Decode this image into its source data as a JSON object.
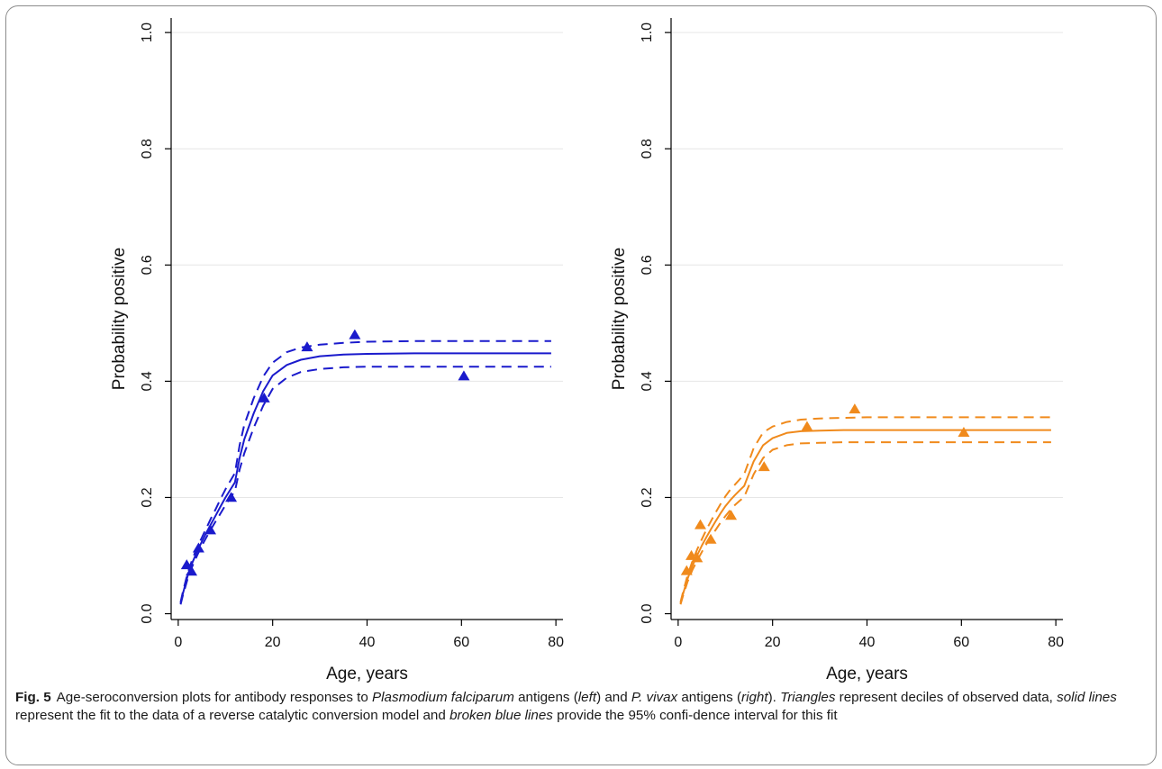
{
  "figure": {
    "label": "Fig. 5",
    "caption": [
      {
        "text": "Age-seroconversion plots for antibody responses to ",
        "italic": false
      },
      {
        "text": "Plasmodium falciparum",
        "italic": true
      },
      {
        "text": " antigens (",
        "italic": false
      },
      {
        "text": "left",
        "italic": true
      },
      {
        "text": ") and ",
        "italic": false
      },
      {
        "text": "P. vivax",
        "italic": true
      },
      {
        "text": " antigens (",
        "italic": false
      },
      {
        "text": "right",
        "italic": true
      },
      {
        "text": "). ",
        "italic": false
      },
      {
        "text": "Triangles",
        "italic": true
      },
      {
        "text": " represent deciles of observed data, ",
        "italic": false
      },
      {
        "text": "solid lines",
        "italic": true
      },
      {
        "text": " represent the fit to the data of a reverse catalytic conversion model and ",
        "italic": false
      },
      {
        "text": "broken blue lines",
        "italic": true
      },
      {
        "text": " provide the 95% confi-dence interval for this fit",
        "italic": false
      }
    ]
  },
  "chart_data": [
    {
      "type": "line",
      "panel": "left",
      "color": "#1a1acc",
      "xlabel": "Age, years",
      "ylabel": "Probability positive",
      "xlim": [
        -1.5,
        81.5
      ],
      "ylim": [
        -0.01,
        1.025
      ],
      "xticks": [
        0,
        20,
        40,
        60,
        80
      ],
      "xtick_labels": [
        "0",
        "20",
        "40",
        "60",
        "80"
      ],
      "yticks": [
        0.0,
        0.2,
        0.4,
        0.6,
        0.8,
        1.0
      ],
      "ytick_labels": [
        "0.0",
        "0.2",
        "0.4",
        "0.6",
        "0.8",
        "1.0"
      ],
      "grid": true,
      "series": [
        {
          "role": "observed",
          "marker": "triangle",
          "x": [
            1.8,
            2.8,
            4.3,
            6.8,
            11.2,
            18.2,
            27.3,
            37.4,
            60.5
          ],
          "y": [
            0.083,
            0.072,
            0.112,
            0.143,
            0.199,
            0.37,
            0.458,
            0.479,
            0.408
          ]
        },
        {
          "role": "fit",
          "line": "solid",
          "x": [
            0.5,
            1,
            2,
            3,
            4,
            5,
            6,
            7,
            8,
            9,
            10,
            11,
            12,
            13,
            14,
            16,
            18,
            20,
            23,
            26,
            30,
            35,
            40,
            50,
            60,
            70,
            79
          ],
          "y": [
            0.018,
            0.035,
            0.065,
            0.088,
            0.107,
            0.124,
            0.14,
            0.155,
            0.17,
            0.185,
            0.2,
            0.213,
            0.226,
            0.268,
            0.3,
            0.345,
            0.383,
            0.41,
            0.428,
            0.437,
            0.443,
            0.446,
            0.447,
            0.448,
            0.448,
            0.448,
            0.448
          ]
        },
        {
          "role": "ci_upper",
          "line": "dashed",
          "x": [
            0.5,
            1,
            2,
            3,
            4,
            5,
            6,
            7,
            8,
            9,
            10,
            11,
            12,
            13,
            14,
            16,
            18,
            20,
            23,
            26,
            30,
            35,
            40,
            50,
            60,
            70,
            79
          ],
          "y": [
            0.02,
            0.038,
            0.07,
            0.094,
            0.114,
            0.131,
            0.148,
            0.165,
            0.181,
            0.198,
            0.214,
            0.228,
            0.242,
            0.29,
            0.325,
            0.371,
            0.408,
            0.432,
            0.45,
            0.458,
            0.463,
            0.466,
            0.468,
            0.469,
            0.469,
            0.469,
            0.469
          ]
        },
        {
          "role": "ci_lower",
          "line": "dashed",
          "x": [
            0.5,
            1,
            2,
            3,
            4,
            5,
            6,
            7,
            8,
            9,
            10,
            11,
            12,
            13,
            14,
            16,
            18,
            20,
            23,
            26,
            30,
            35,
            40,
            50,
            60,
            70,
            79
          ],
          "y": [
            0.016,
            0.032,
            0.06,
            0.082,
            0.1,
            0.117,
            0.132,
            0.146,
            0.16,
            0.173,
            0.187,
            0.199,
            0.211,
            0.248,
            0.276,
            0.32,
            0.358,
            0.387,
            0.406,
            0.416,
            0.421,
            0.424,
            0.425,
            0.425,
            0.425,
            0.425,
            0.425
          ]
        }
      ]
    },
    {
      "type": "line",
      "panel": "right",
      "color": "#f08a1c",
      "xlabel": "Age, years",
      "ylabel": "Probability positive",
      "xlim": [
        -1.5,
        81.5
      ],
      "ylim": [
        -0.01,
        1.025
      ],
      "xticks": [
        0,
        20,
        40,
        60,
        80
      ],
      "xtick_labels": [
        "0",
        "20",
        "40",
        "60",
        "80"
      ],
      "yticks": [
        0.0,
        0.2,
        0.4,
        0.6,
        0.8,
        1.0
      ],
      "ytick_labels": [
        "0.0",
        "0.2",
        "0.4",
        "0.6",
        "0.8",
        "1.0"
      ],
      "grid": true,
      "series": [
        {
          "role": "observed",
          "marker": "triangle",
          "x": [
            1.8,
            2.8,
            4.0,
            4.7,
            6.9,
            11.2,
            18.2,
            27.3,
            37.4,
            60.5
          ],
          "y": [
            0.073,
            0.099,
            0.095,
            0.152,
            0.127,
            0.168,
            0.252,
            0.321,
            0.351,
            0.311
          ]
        },
        {
          "role": "fit",
          "line": "solid",
          "x": [
            0.5,
            1,
            2,
            3,
            4,
            5,
            6,
            7,
            8,
            9,
            10,
            11,
            12,
            13,
            14,
            16,
            18,
            20,
            23,
            26,
            30,
            35,
            40,
            50,
            60,
            70,
            79
          ],
          "y": [
            0.018,
            0.033,
            0.06,
            0.082,
            0.1,
            0.117,
            0.132,
            0.146,
            0.16,
            0.173,
            0.185,
            0.195,
            0.204,
            0.212,
            0.22,
            0.262,
            0.29,
            0.302,
            0.311,
            0.314,
            0.315,
            0.316,
            0.316,
            0.316,
            0.316,
            0.316,
            0.316
          ]
        },
        {
          "role": "ci_upper",
          "line": "dashed",
          "x": [
            0.5,
            1,
            2,
            3,
            4,
            5,
            6,
            7,
            8,
            9,
            10,
            11,
            12,
            13,
            14,
            16,
            18,
            20,
            23,
            26,
            30,
            35,
            40,
            50,
            60,
            70,
            79
          ],
          "y": [
            0.02,
            0.036,
            0.066,
            0.09,
            0.11,
            0.128,
            0.145,
            0.16,
            0.175,
            0.189,
            0.202,
            0.213,
            0.222,
            0.231,
            0.24,
            0.285,
            0.312,
            0.322,
            0.33,
            0.334,
            0.336,
            0.337,
            0.338,
            0.338,
            0.338,
            0.338,
            0.338
          ]
        },
        {
          "role": "ci_lower",
          "line": "dashed",
          "x": [
            0.5,
            1,
            2,
            3,
            4,
            5,
            6,
            7,
            8,
            9,
            10,
            11,
            12,
            13,
            14,
            16,
            18,
            20,
            23,
            26,
            30,
            35,
            40,
            50,
            60,
            70,
            79
          ],
          "y": [
            0.016,
            0.03,
            0.055,
            0.075,
            0.091,
            0.106,
            0.12,
            0.133,
            0.145,
            0.157,
            0.168,
            0.178,
            0.187,
            0.194,
            0.201,
            0.24,
            0.268,
            0.282,
            0.29,
            0.293,
            0.294,
            0.295,
            0.295,
            0.295,
            0.295,
            0.295,
            0.295
          ]
        }
      ]
    }
  ]
}
